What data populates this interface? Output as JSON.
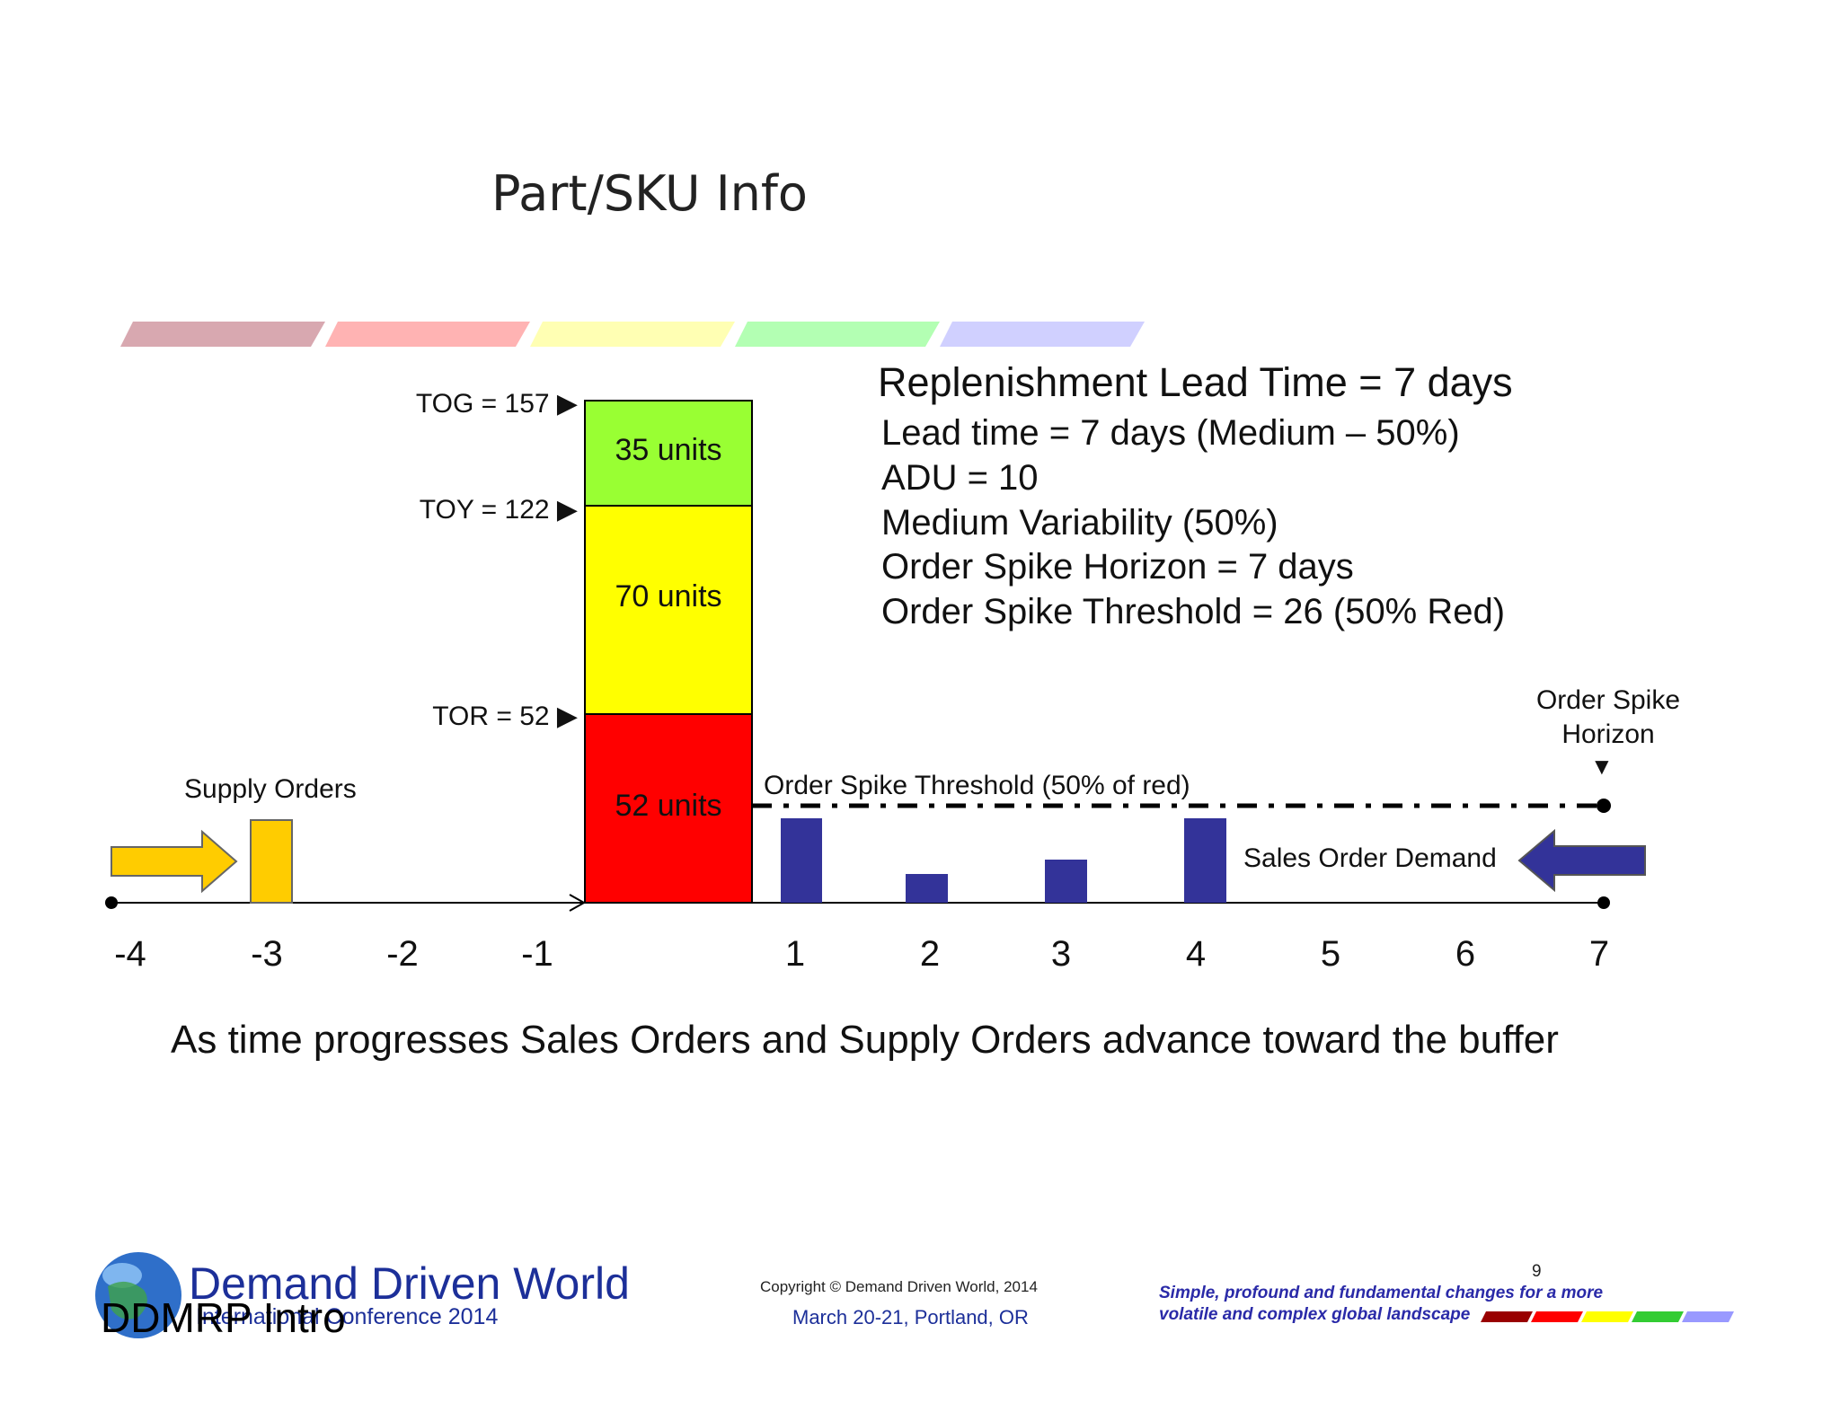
{
  "title": "Part/SKU Info",
  "info": {
    "heading": "Replenishment Lead Time = 7 days",
    "lines": [
      "Lead time = 7 days (Medium – 50%)",
      "ADU = 10",
      "Medium Variability (50%)",
      "Order Spike Horizon = 7 days",
      "Order Spike Threshold = 26 (50% Red)"
    ]
  },
  "buffer": {
    "tog_label": "TOG = 157 ▶",
    "toy_label": "TOY = 122 ▶",
    "tor_label": "TOR = 52 ▶",
    "zones": [
      {
        "name": "green",
        "label": "35 units",
        "units": 35,
        "color": "#99ff33"
      },
      {
        "name": "yellow",
        "label": "70 units",
        "units": 70,
        "color": "#ffff00"
      },
      {
        "name": "red",
        "label": "52 units",
        "units": 52,
        "color": "#ff0000"
      }
    ]
  },
  "timeline": {
    "ticks": [
      "-4",
      "-3",
      "-2",
      "-1",
      "1",
      "2",
      "3",
      "4",
      "5",
      "6",
      "7"
    ]
  },
  "labels": {
    "supply_orders": "Supply Orders",
    "spike_threshold": "Order Spike Threshold (50% of red)",
    "spike_horizon_line1": "Order Spike",
    "spike_horizon_line2": "Horizon",
    "spike_horizon_marker": "▼",
    "sales_demand": "Sales Order Demand"
  },
  "caption": "As time progresses Sales Orders and Supply Orders advance toward the buffer",
  "footer": {
    "brand": "Demand Driven World",
    "conference": "International Conference 2014",
    "deck_title": "DDMRP Intro",
    "copyright": "Copyright © Demand Driven World, 2014",
    "event_date": "March 20-21, Portland, OR",
    "page_number": "9",
    "tagline_line1": "Simple, profound and fundamental changes for a more",
    "tagline_line2": "volatile and complex global landscape"
  },
  "colors": {
    "demand_blue": "#333399",
    "supply_gold": "#ffcc00",
    "stripe_colors": [
      "#d8a8b0",
      "#ffb3b3",
      "#ffffb3",
      "#b3ffb3",
      "#d0d0ff"
    ],
    "footer_stripe_colors": [
      "#990000",
      "#ff0000",
      "#ffff00",
      "#33cc33",
      "#9999ff"
    ]
  }
}
